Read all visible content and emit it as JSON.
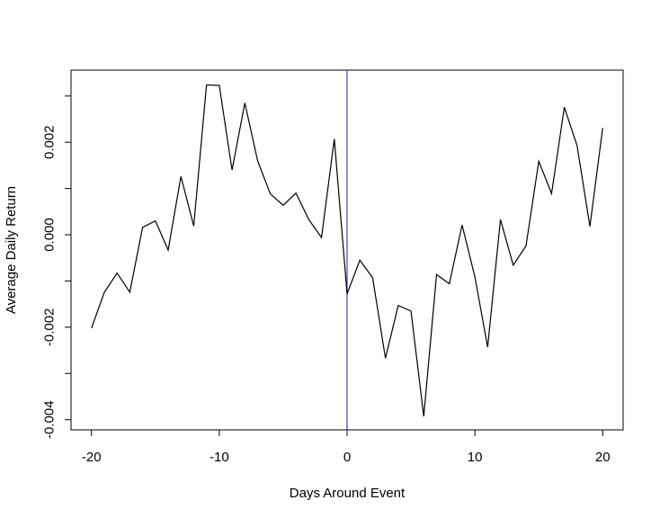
{
  "chart_data": {
    "type": "line",
    "title": "",
    "xlabel": "Days Around Event",
    "ylabel": "Average Daily Return",
    "xlim": [
      -21.6,
      21.6
    ],
    "ylim": [
      -0.00422,
      0.00356
    ],
    "xticks": [
      -20,
      -10,
      0,
      10,
      20
    ],
    "xtick_labels": [
      "-20",
      "-10",
      "0",
      "10",
      "20"
    ],
    "yticks": [
      -0.004,
      -0.002,
      0.0,
      0.002
    ],
    "ytick_labels": [
      "-0.004",
      "-0.002",
      "0.000",
      "0.002"
    ],
    "ytick_marks": [
      -0.004,
      -0.003,
      -0.002,
      -0.001,
      0.0,
      0.001,
      0.002,
      0.003
    ],
    "grid": false,
    "event_line": {
      "x": 0,
      "color": "#3f3fbf"
    },
    "series": [
      {
        "color": "#000000",
        "x": [
          -20,
          -19,
          -18,
          -17,
          -16,
          -15,
          -14,
          -13,
          -12,
          -11,
          -10,
          -9,
          -8,
          -7,
          -6,
          -5,
          -4,
          -3,
          -2,
          -1,
          0,
          1,
          2,
          3,
          4,
          5,
          6,
          7,
          8,
          9,
          10,
          11,
          12,
          13,
          14,
          15,
          16,
          17,
          18,
          19,
          20
        ],
        "y": [
          -0.00202,
          -0.00125,
          -0.00083,
          -0.00124,
          0.00016,
          0.0003,
          -0.00033,
          0.00126,
          0.00019,
          0.00324,
          0.00323,
          0.0014,
          0.00285,
          0.0016,
          0.00088,
          0.00064,
          0.0009,
          0.00033,
          -6e-05,
          0.00207,
          -0.00128,
          -0.00055,
          -0.00093,
          -0.00267,
          -0.00153,
          -0.00165,
          -0.00393,
          -0.00086,
          -0.00106,
          0.00021,
          -0.00091,
          -0.00243,
          0.00033,
          -0.00066,
          -0.00024,
          0.00159,
          0.00089,
          0.00276,
          0.00192,
          0.00018,
          0.00231
        ]
      }
    ]
  }
}
